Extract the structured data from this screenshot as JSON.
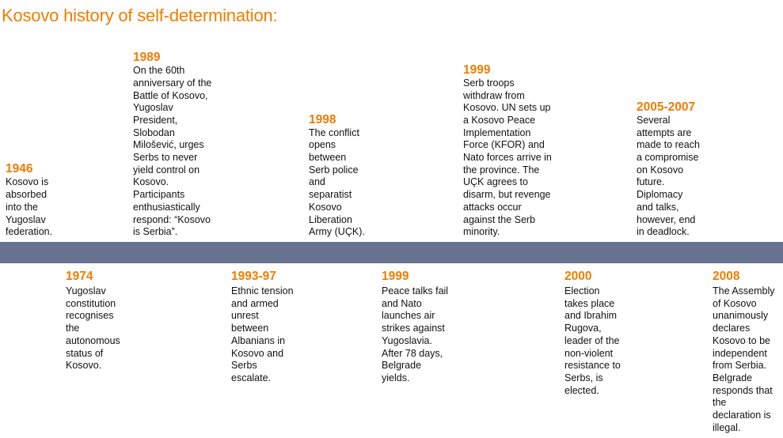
{
  "title": "Kosovo history of self-determination:",
  "colors": {
    "accent": "#ef7d00",
    "bar": "#667290",
    "text": "#111111"
  },
  "events_top": [
    {
      "year": "1946",
      "text": "Kosovo is\nabsorbed\ninto the\nYugoslav\nfederation."
    },
    {
      "year": "1989",
      "text": "On the 60th\nanniversary of the\nBattle of Kosovo,\nYugoslav\nPresident,\nSlobodan\nMilošević, urges\nSerbs to never\nyield control on\nKosovo.\nParticipants\nenthusiastically\nrespond: “Kosovo\nis Serbia”."
    },
    {
      "year": "1998",
      "text": "The conflict\nopens\nbetween\nSerb police\nand\nseparatist\nKosovo\nLiberation\nArmy (UÇK)."
    },
    {
      "year": "1999",
      "text": "Serb troops\nwithdraw from\nKosovo. UN sets up\na Kosovo Peace\nImplementation\nForce (KFOR) and\nNato forces arrive in\nthe province. The\nUÇK agrees to\ndisarm, but revenge\nattacks occur\nagainst the Serb\nminority."
    },
    {
      "year": "2005-2007",
      "text": "Several\nattempts are\nmade to reach\na compromise\non Kosovo\nfuture.\nDiplomacy\nand talks,\nhowever, end\nin deadlock."
    }
  ],
  "events_bottom": [
    {
      "year": "1974",
      "text": "Yugoslav\nconstitution\nrecognises\nthe\nautonomous\nstatus of\nKosovo."
    },
    {
      "year": "1993-97",
      "text": "Ethnic tension\nand armed\nunrest\nbetween\nAlbanians in\nKosovo and\nSerbs\nescalate."
    },
    {
      "year": "1999",
      "text": "Peace talks fail\nand Nato\nlaunches air\nstrikes against\nYugoslavia.\nAfter 78 days,\nBelgrade\nyields."
    },
    {
      "year": "2000",
      "text": "Election\ntakes place\nand Ibrahim\nRugova,\nleader of the\nnon-violent\nresistance to\nSerbs, is\nelected."
    },
    {
      "year": "2008",
      "text": "The Assembly\nof Kosovo\nunanimously\ndeclares\nKosovo to be\nindependent\nfrom Serbia.\nBelgrade\nresponds that\nthe\ndeclaration is\nillegal."
    }
  ]
}
